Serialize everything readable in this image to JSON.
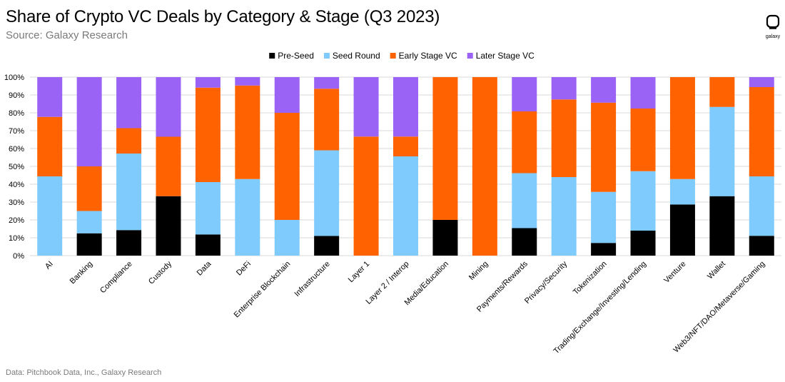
{
  "header": {
    "title": "Share of Crypto VC Deals by Category & Stage (Q3 2023)",
    "subtitle": "Source: Galaxy Research",
    "logo_text": "galaxy"
  },
  "footer": {
    "note": "Data: Pitchbook Data, Inc., Galaxy Research"
  },
  "colors": {
    "Pre-Seed": "#000000",
    "Seed Round": "#7fcbfd",
    "Early Stage VC": "#ff6200",
    "Later Stage VC": "#9b63f5",
    "grid": "#d9d9d9"
  },
  "chart_data": {
    "type": "bar",
    "stacked": true,
    "title": "Share of Crypto VC Deals by Category & Stage (Q3 2023)",
    "xlabel": "",
    "ylabel": "",
    "ylim": [
      0,
      100
    ],
    "yticks": [
      "0%",
      "10%",
      "20%",
      "30%",
      "40%",
      "50%",
      "60%",
      "70%",
      "80%",
      "90%",
      "100%"
    ],
    "legend_position": "top-center",
    "categories": [
      "AI",
      "Banking",
      "Compliance",
      "Custody",
      "Data",
      "DeFi",
      "Enterprise Blockchain",
      "Infrastructure",
      "Layer 1",
      "Layer 2 / Interop",
      "Media/Education",
      "Mining",
      "Payments/Rewards",
      "Privacy/Security",
      "Tokenization",
      "Trading/Exchange/Investing/Lending",
      "Venture",
      "Wallet",
      "Web3/NFT/DAO/Metaverse/Gaming"
    ],
    "series": [
      {
        "name": "Pre-Seed",
        "values": [
          0,
          12.5,
          14.3,
          33.3,
          11.8,
          0,
          0,
          11,
          0,
          0,
          20,
          0,
          15.4,
          0,
          7.1,
          14,
          28.6,
          33.3,
          11.1
        ]
      },
      {
        "name": "Seed Round",
        "values": [
          44.4,
          12.5,
          42.9,
          0,
          29.4,
          42.9,
          20,
          48,
          0,
          55.6,
          0,
          0,
          30.8,
          44,
          28.6,
          33.3,
          14.3,
          50,
          33.3
        ]
      },
      {
        "name": "Early Stage VC",
        "values": [
          33.3,
          25,
          14.2,
          33.3,
          52.9,
          52.4,
          60,
          34.5,
          66.7,
          11.1,
          80,
          100,
          34.6,
          43.5,
          50,
          35.1,
          57.1,
          16.7,
          50
        ]
      },
      {
        "name": "Later Stage VC",
        "values": [
          22.3,
          50,
          28.6,
          33.4,
          5.9,
          4.7,
          20,
          6.5,
          33.3,
          33.3,
          0,
          0,
          19.2,
          12.5,
          14.3,
          17.6,
          0,
          0,
          5.6
        ]
      }
    ]
  }
}
